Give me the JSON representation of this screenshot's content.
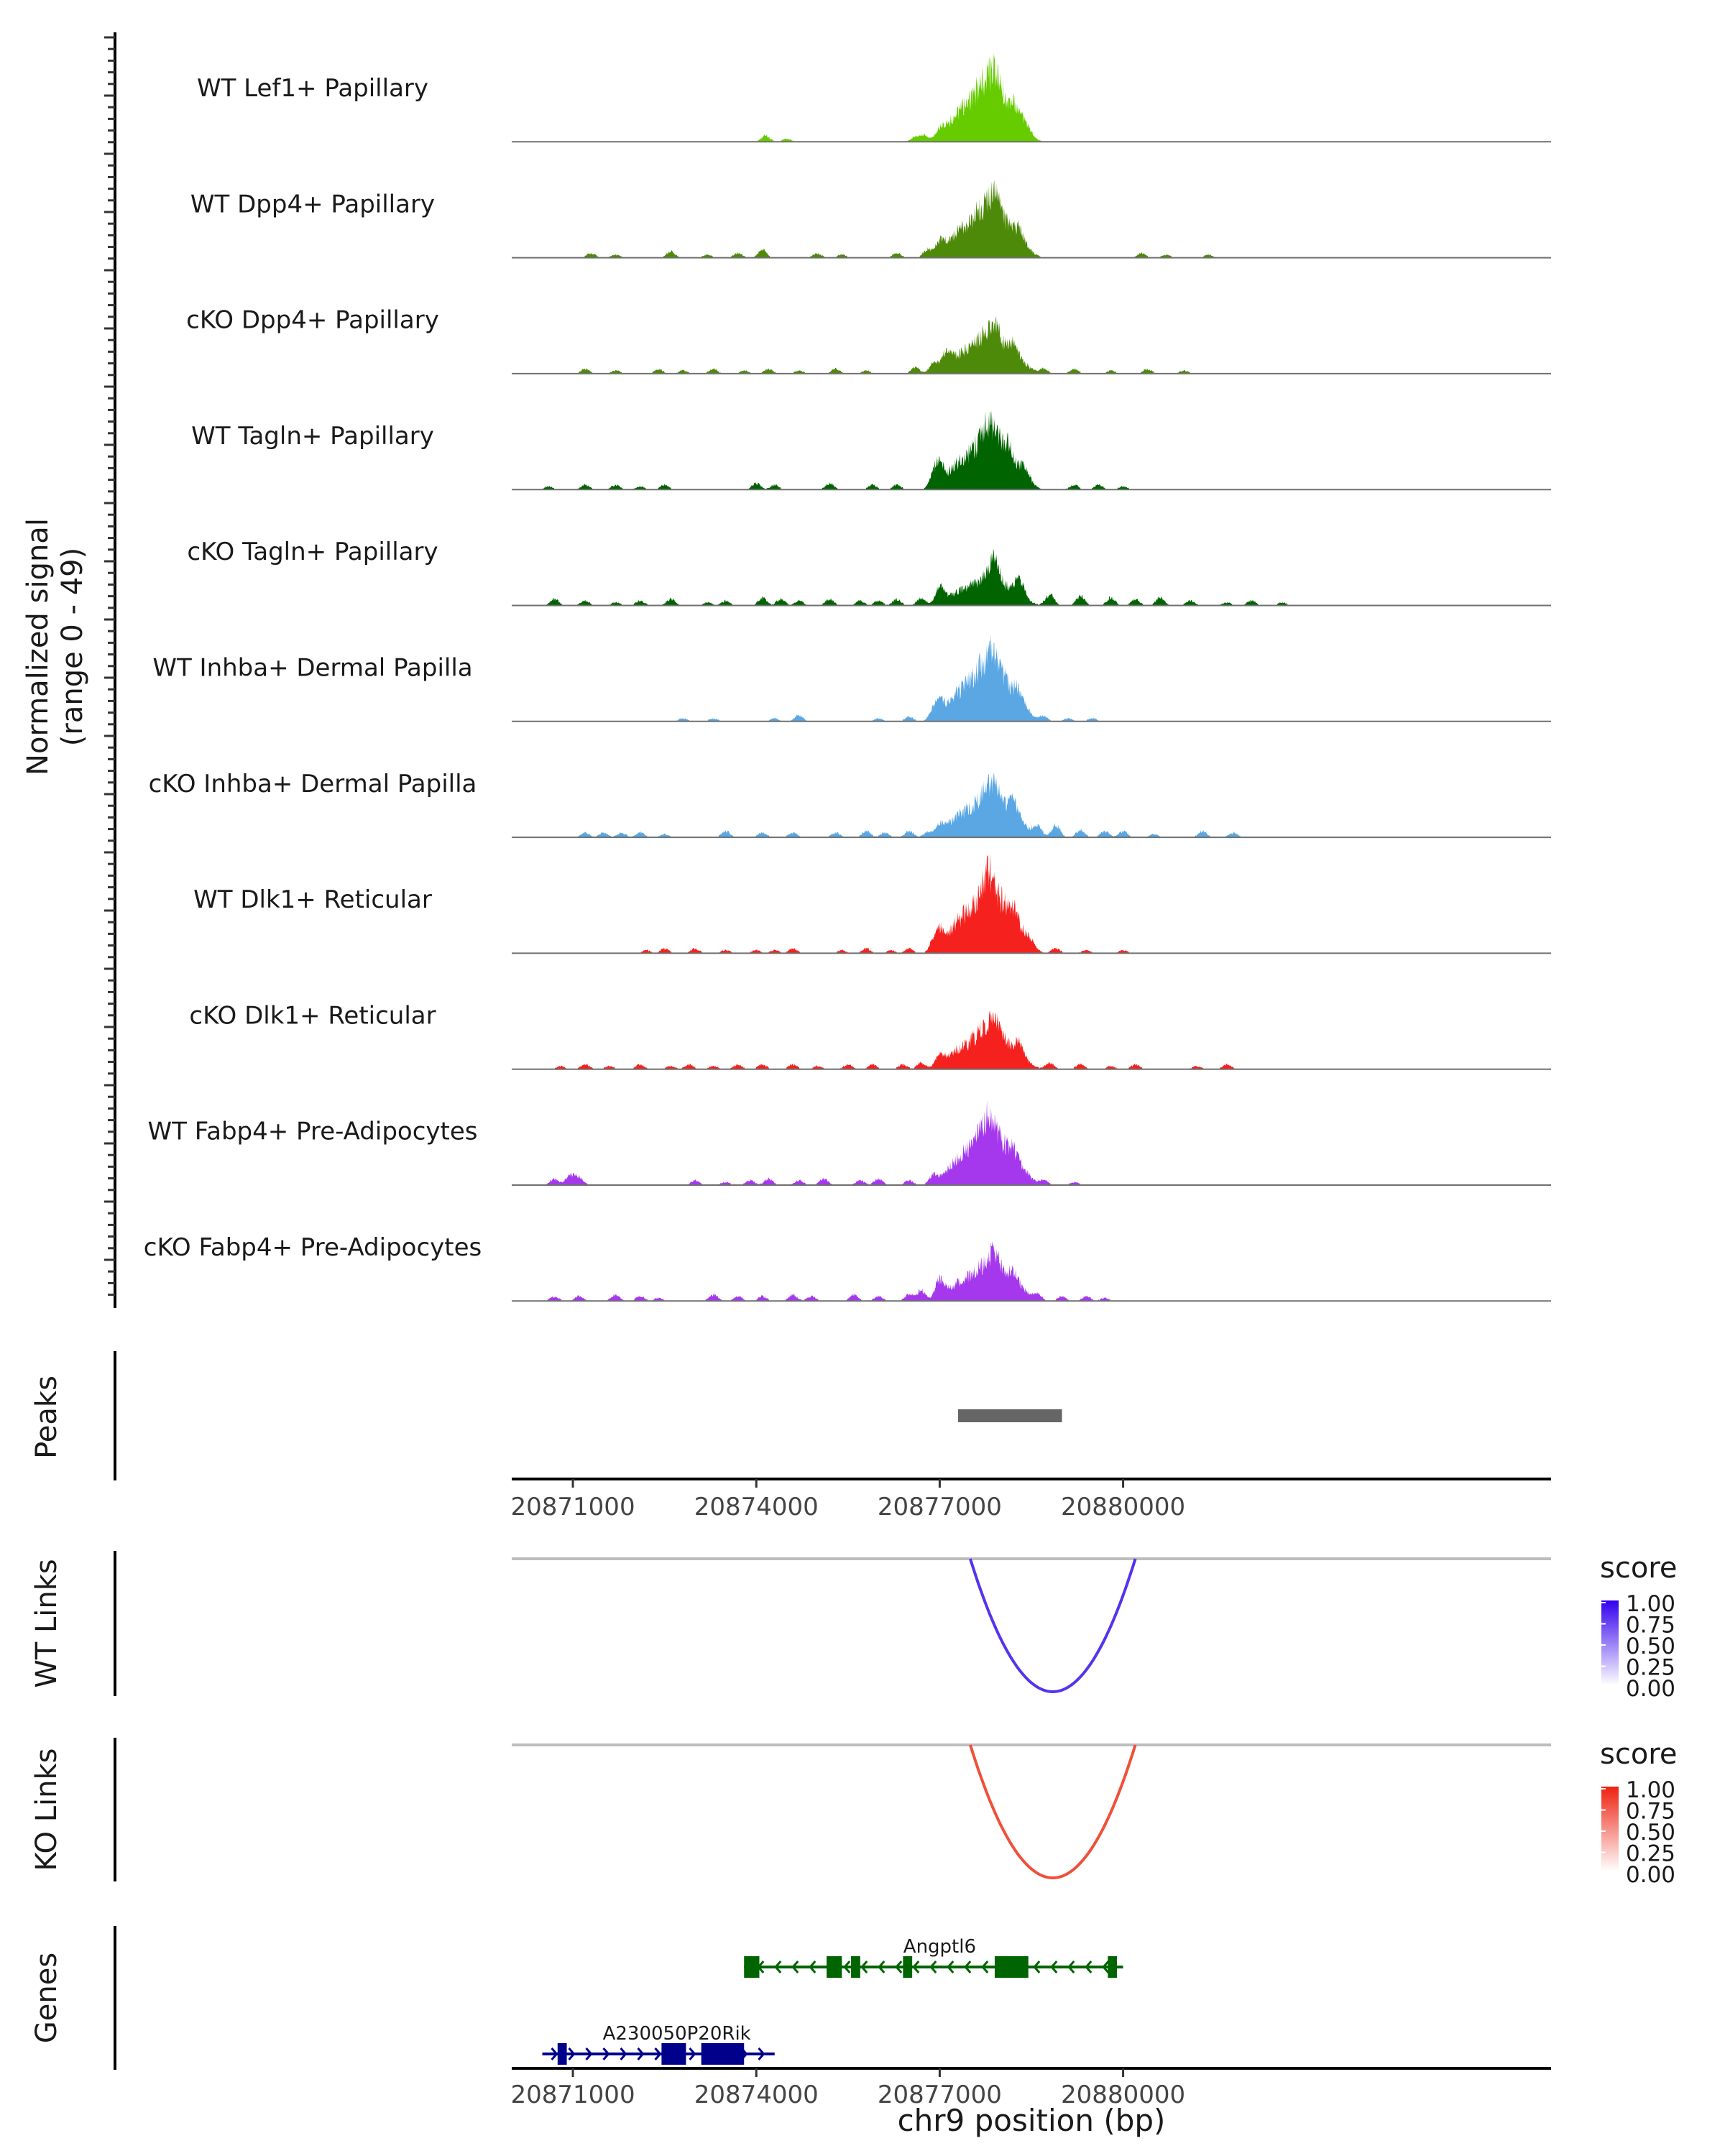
{
  "chart_data": {
    "type": "area",
    "title": "",
    "xlabel": "chr9 position (bp)",
    "xlim": [
      20870000,
      20887000
    ],
    "x_ticks": [
      "20871000",
      "20874000",
      "20877000",
      "20880000"
    ],
    "y_axis_label_line1": "Normalized signal",
    "y_axis_label_line2": "(range 0 - 49)",
    "ylim": [
      0,
      49
    ],
    "tracks": [
      {
        "name": "WT Lef1+ Papillary",
        "color": "#66cc00",
        "seed": 11,
        "noise": 2.0,
        "peak_scale": 1.0,
        "small_peaks": [
          [
            20874150,
            4
          ],
          [
            20874500,
            2
          ],
          [
            20876600,
            3
          ],
          [
            20876750,
            4
          ],
          [
            20877000,
            5
          ],
          [
            20877900,
            7
          ],
          [
            20878200,
            4
          ],
          [
            20878400,
            3
          ]
        ]
      },
      {
        "name": "WT Dpp4+ Papillary",
        "color": "#4e8a0a",
        "seed": 12,
        "noise": 2.4,
        "peak_scale": 0.95,
        "small_peaks": [
          [
            20871300,
            3
          ],
          [
            20871700,
            2
          ],
          [
            20872600,
            4
          ],
          [
            20873200,
            2
          ],
          [
            20873700,
            3
          ],
          [
            20874100,
            5
          ],
          [
            20875000,
            3
          ],
          [
            20875400,
            2
          ],
          [
            20876300,
            3
          ],
          [
            20876800,
            5
          ],
          [
            20877000,
            8
          ],
          [
            20877900,
            9
          ],
          [
            20878300,
            4
          ],
          [
            20880300,
            3
          ],
          [
            20880700,
            2
          ],
          [
            20881400,
            2
          ]
        ]
      },
      {
        "name": "cKO Dpp4+ Papillary",
        "color": "#4e8a0a",
        "seed": 13,
        "noise": 2.4,
        "peak_scale": 0.85,
        "small_peaks": [
          [
            20871200,
            3
          ],
          [
            20871700,
            2
          ],
          [
            20872400,
            3
          ],
          [
            20872800,
            2
          ],
          [
            20873300,
            3
          ],
          [
            20873800,
            2
          ],
          [
            20874200,
            3
          ],
          [
            20874700,
            2
          ],
          [
            20875300,
            3
          ],
          [
            20875800,
            2
          ],
          [
            20876600,
            4
          ],
          [
            20876900,
            6
          ],
          [
            20877100,
            9
          ],
          [
            20877900,
            8
          ],
          [
            20878200,
            6
          ],
          [
            20878700,
            3
          ],
          [
            20879200,
            3
          ],
          [
            20879800,
            2
          ],
          [
            20880400,
            3
          ],
          [
            20881000,
            2
          ]
        ]
      },
      {
        "name": "WT Tagln+ Papillary",
        "color": "#006400",
        "seed": 14,
        "noise": 2.6,
        "peak_scale": 1.05,
        "small_peaks": [
          [
            20870600,
            2
          ],
          [
            20871200,
            3
          ],
          [
            20871700,
            3
          ],
          [
            20872100,
            2
          ],
          [
            20872500,
            3
          ],
          [
            20874000,
            4
          ],
          [
            20874300,
            3
          ],
          [
            20875200,
            4
          ],
          [
            20875900,
            3
          ],
          [
            20876300,
            3
          ],
          [
            20876900,
            8
          ],
          [
            20877000,
            12
          ],
          [
            20877800,
            9
          ],
          [
            20878100,
            8
          ],
          [
            20878400,
            5
          ],
          [
            20879200,
            3
          ],
          [
            20879600,
            3
          ],
          [
            20880000,
            2
          ]
        ]
      },
      {
        "name": "cKO Tagln+ Papillary",
        "color": "#006400",
        "seed": 15,
        "noise": 2.8,
        "peak_scale": 0.7,
        "small_peaks": [
          [
            20870700,
            4
          ],
          [
            20871200,
            3
          ],
          [
            20871700,
            2
          ],
          [
            20872100,
            3
          ],
          [
            20872600,
            4
          ],
          [
            20873200,
            2
          ],
          [
            20873500,
            3
          ],
          [
            20874100,
            5
          ],
          [
            20874400,
            4
          ],
          [
            20874700,
            3
          ],
          [
            20875200,
            4
          ],
          [
            20875700,
            3
          ],
          [
            20876000,
            3
          ],
          [
            20876300,
            4
          ],
          [
            20876700,
            5
          ],
          [
            20877000,
            10
          ],
          [
            20877900,
            13
          ],
          [
            20878300,
            10
          ],
          [
            20878800,
            7
          ],
          [
            20879300,
            6
          ],
          [
            20879800,
            5
          ],
          [
            20880200,
            4
          ],
          [
            20880600,
            5
          ],
          [
            20881100,
            3
          ],
          [
            20881700,
            2
          ],
          [
            20882100,
            3
          ],
          [
            20882600,
            2
          ]
        ]
      },
      {
        "name": "WT Inhba+ Dermal Papilla",
        "color": "#5aa7e4",
        "seed": 16,
        "noise": 1.6,
        "peak_scale": 1.0,
        "small_peaks": [
          [
            20872800,
            2
          ],
          [
            20873300,
            2
          ],
          [
            20874300,
            2
          ],
          [
            20874700,
            4
          ],
          [
            20876000,
            2
          ],
          [
            20876500,
            3
          ],
          [
            20876900,
            6
          ],
          [
            20877000,
            9
          ],
          [
            20877900,
            8
          ],
          [
            20878300,
            5
          ],
          [
            20878700,
            3
          ],
          [
            20879100,
            2
          ],
          [
            20879500,
            2
          ]
        ]
      },
      {
        "name": "cKO Inhba+ Dermal Papilla",
        "color": "#5aa7e4",
        "seed": 17,
        "noise": 1.6,
        "peak_scale": 0.8,
        "small_peaks": [
          [
            20871200,
            3
          ],
          [
            20871500,
            3
          ],
          [
            20871800,
            3
          ],
          [
            20872100,
            3
          ],
          [
            20872500,
            2
          ],
          [
            20873500,
            4
          ],
          [
            20874100,
            3
          ],
          [
            20874600,
            3
          ],
          [
            20875300,
            3
          ],
          [
            20875800,
            4
          ],
          [
            20876100,
            3
          ],
          [
            20876500,
            4
          ],
          [
            20876800,
            3
          ],
          [
            20877000,
            6
          ],
          [
            20877900,
            9
          ],
          [
            20878200,
            8
          ],
          [
            20878600,
            7
          ],
          [
            20878900,
            8
          ],
          [
            20879300,
            5
          ],
          [
            20879700,
            4
          ],
          [
            20880000,
            4
          ],
          [
            20880500,
            2
          ],
          [
            20881300,
            4
          ],
          [
            20881800,
            3
          ]
        ]
      },
      {
        "name": "WT Dlk1+ Reticular",
        "color": "#f5211e",
        "seed": 18,
        "noise": 1.6,
        "peak_scale": 1.08,
        "small_peaks": [
          [
            20872200,
            2
          ],
          [
            20872500,
            3
          ],
          [
            20873000,
            3
          ],
          [
            20873500,
            2
          ],
          [
            20874000,
            2
          ],
          [
            20874300,
            2
          ],
          [
            20874600,
            3
          ],
          [
            20875400,
            2
          ],
          [
            20875800,
            3
          ],
          [
            20876200,
            2
          ],
          [
            20876500,
            3
          ],
          [
            20876900,
            6
          ],
          [
            20877000,
            10
          ],
          [
            20877800,
            9
          ],
          [
            20878200,
            6
          ],
          [
            20878500,
            4
          ],
          [
            20878900,
            3
          ],
          [
            20879400,
            2
          ],
          [
            20880000,
            2
          ]
        ]
      },
      {
        "name": "cKO Dlk1+ Reticular",
        "color": "#f5211e",
        "seed": 19,
        "noise": 2.0,
        "peak_scale": 0.85,
        "small_peaks": [
          [
            20870800,
            2
          ],
          [
            20871200,
            3
          ],
          [
            20871600,
            2
          ],
          [
            20872100,
            3
          ],
          [
            20872600,
            2
          ],
          [
            20872900,
            3
          ],
          [
            20873300,
            2
          ],
          [
            20873700,
            3
          ],
          [
            20874100,
            3
          ],
          [
            20874600,
            3
          ],
          [
            20875000,
            2
          ],
          [
            20875500,
            3
          ],
          [
            20875900,
            3
          ],
          [
            20876400,
            3
          ],
          [
            20876700,
            4
          ],
          [
            20877000,
            8
          ],
          [
            20877900,
            9
          ],
          [
            20878300,
            6
          ],
          [
            20878800,
            4
          ],
          [
            20879300,
            3
          ],
          [
            20879800,
            2
          ],
          [
            20880200,
            3
          ],
          [
            20881200,
            2
          ],
          [
            20881700,
            3
          ]
        ]
      },
      {
        "name": "WT Fabp4+ Pre-Adipocytes",
        "color": "#a538ed",
        "seed": 20,
        "noise": 1.6,
        "peak_scale": 1.0,
        "small_peaks": [
          [
            20870700,
            4
          ],
          [
            20870950,
            6
          ],
          [
            20871100,
            5
          ],
          [
            20873000,
            3
          ],
          [
            20873500,
            2
          ],
          [
            20873900,
            3
          ],
          [
            20874200,
            4
          ],
          [
            20874700,
            3
          ],
          [
            20875100,
            4
          ],
          [
            20875700,
            3
          ],
          [
            20876000,
            4
          ],
          [
            20876500,
            3
          ],
          [
            20876900,
            6
          ],
          [
            20877800,
            7
          ],
          [
            20878200,
            4
          ],
          [
            20878700,
            3
          ],
          [
            20879200,
            2
          ]
        ]
      },
      {
        "name": "cKO Fabp4+ Pre-Adipocytes",
        "color": "#a538ed",
        "seed": 21,
        "noise": 1.8,
        "peak_scale": 0.75,
        "small_peaks": [
          [
            20870700,
            3
          ],
          [
            20871100,
            3
          ],
          [
            20871700,
            4
          ],
          [
            20872100,
            3
          ],
          [
            20872400,
            2
          ],
          [
            20873300,
            4
          ],
          [
            20873700,
            3
          ],
          [
            20874100,
            3
          ],
          [
            20874600,
            4
          ],
          [
            20874900,
            3
          ],
          [
            20875600,
            4
          ],
          [
            20876000,
            3
          ],
          [
            20876500,
            4
          ],
          [
            20876700,
            7
          ],
          [
            20877000,
            12
          ],
          [
            20877900,
            9
          ],
          [
            20878200,
            6
          ],
          [
            20878600,
            4
          ],
          [
            20879000,
            3
          ],
          [
            20879400,
            3
          ],
          [
            20879700,
            2
          ]
        ]
      }
    ],
    "main_peak": {
      "center": 20877800,
      "heights": [
        48,
        44,
        36,
        40,
        32,
        47,
        43,
        48,
        38,
        44,
        39
      ]
    },
    "peaks_track": {
      "label": "Peaks",
      "color": "#666666",
      "regions": [
        [
          20877300,
          20879000
        ]
      ]
    },
    "links_tracks": [
      {
        "label": "WT Links",
        "color": "#5533ee",
        "start": 20877500,
        "end": 20880200,
        "score": 1.0,
        "legend": {
          "title": "score",
          "labels": [
            "1.00",
            "0.75",
            "0.50",
            "0.25",
            "0.00"
          ],
          "high": "#3300ee",
          "low": "#ffffff"
        }
      },
      {
        "label": "KO Links",
        "color": "#f0503a",
        "start": 20877500,
        "end": 20880200,
        "score": 1.0,
        "legend": {
          "title": "score",
          "labels": [
            "1.00",
            "0.75",
            "0.50",
            "0.25",
            "0.00"
          ],
          "high": "#ee2211",
          "low": "#ffffff"
        }
      }
    ],
    "genes_track": {
      "label": "Genes",
      "genes": [
        {
          "name": "Angptl6",
          "color": "#006400",
          "strand": "-",
          "start": 20873800,
          "end": 20880000,
          "exons": [
            [
              20873800,
              20874050
            ],
            [
              20875150,
              20875400
            ],
            [
              20875550,
              20875700
            ],
            [
              20876400,
              20876550
            ],
            [
              20877900,
              20878450
            ],
            [
              20879750,
              20879900
            ]
          ]
        },
        {
          "name": "A230050P20Rik",
          "color": "#00008b",
          "strand": "+",
          "start": 20870500,
          "end": 20874300,
          "exons": [
            [
              20870750,
              20870900
            ],
            [
              20872450,
              20872850
            ],
            [
              20873100,
              20873800
            ]
          ]
        }
      ]
    }
  }
}
